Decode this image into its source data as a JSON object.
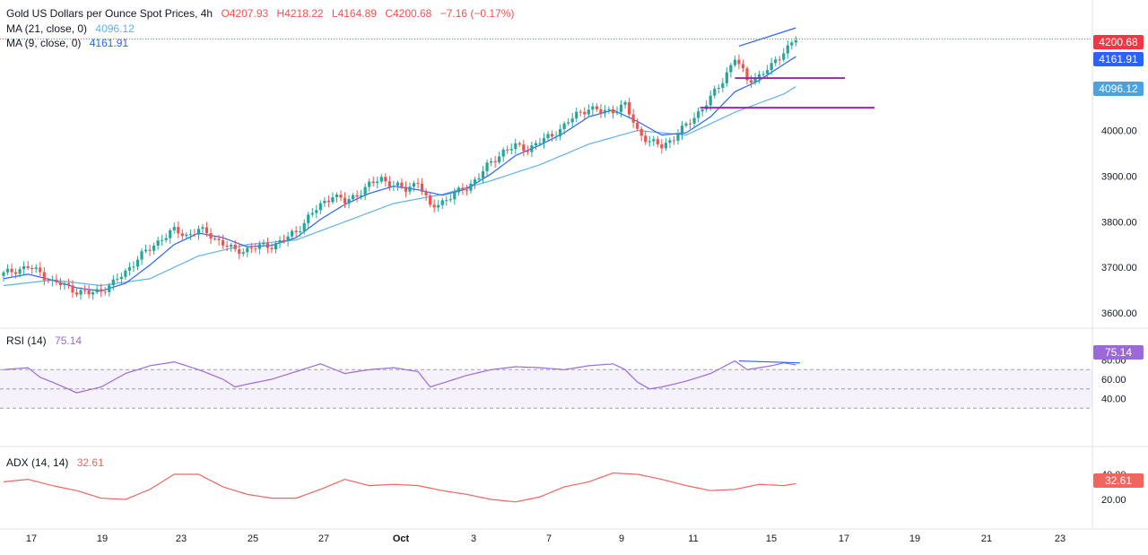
{
  "header": {
    "symbol": "Gold US Dollars per Ounce Spot Prices, 4h",
    "open": "O4207.93",
    "high": "H4218.22",
    "low": "L4164.89",
    "close": "C4200.68",
    "change": "−7.16 (−0.17%)"
  },
  "ma21": {
    "label": "MA (21, close, 0)",
    "value": "4096.12",
    "color": "#5fb3e6"
  },
  "ma9": {
    "label": "MA (9, close, 0)",
    "value": "4161.91",
    "color": "#2962ff"
  },
  "rsi": {
    "label": "RSI (14)",
    "value": "75.14",
    "color": "#9c6ad8"
  },
  "adx": {
    "label": "ADX (14, 14)",
    "value": "32.61",
    "color": "#f0665e"
  },
  "price_tags": {
    "last": "4200.68",
    "ma9": "4161.91",
    "ma21": "4096.12"
  },
  "colors": {
    "up": "#26a69a",
    "down": "#ef5350",
    "support": "#9c27b0",
    "divergence": "#2962ff"
  },
  "chart_data": [
    {
      "type": "candlestick",
      "title": "Gold US Dollars per Ounce Spot Prices, 4h",
      "y_ticks": [
        3600,
        3700,
        3800,
        3900,
        4000
      ],
      "ylim": [
        3580,
        4235
      ],
      "x_labels": [
        "17",
        "19",
        "23",
        "25",
        "27",
        "Oct",
        "3",
        "7",
        "9",
        "11",
        "15",
        "17",
        "19",
        "21",
        "23"
      ],
      "last_price": 4200.68,
      "close_path": [
        [
          0,
          3685
        ],
        [
          3,
          3695
        ],
        [
          6,
          3700
        ],
        [
          9,
          3688
        ],
        [
          12,
          3668
        ],
        [
          15,
          3660
        ],
        [
          18,
          3648
        ],
        [
          21,
          3642
        ],
        [
          24,
          3650
        ],
        [
          27,
          3665
        ],
        [
          30,
          3690
        ],
        [
          33,
          3720
        ],
        [
          36,
          3740
        ],
        [
          39,
          3765
        ],
        [
          42,
          3780
        ],
        [
          45,
          3770
        ],
        [
          48,
          3782
        ],
        [
          51,
          3770
        ],
        [
          54,
          3752
        ],
        [
          57,
          3735
        ],
        [
          60,
          3740
        ],
        [
          63,
          3745
        ],
        [
          66,
          3748
        ],
        [
          69,
          3760
        ],
        [
          72,
          3778
        ],
        [
          75,
          3810
        ],
        [
          78,
          3835
        ],
        [
          81,
          3860
        ],
        [
          84,
          3842
        ],
        [
          87,
          3860
        ],
        [
          90,
          3880
        ],
        [
          93,
          3895
        ],
        [
          96,
          3880
        ],
        [
          99,
          3870
        ],
        [
          102,
          3890
        ],
        [
          105,
          3830
        ],
        [
          108,
          3845
        ],
        [
          111,
          3860
        ],
        [
          114,
          3875
        ],
        [
          117,
          3900
        ],
        [
          120,
          3930
        ],
        [
          123,
          3955
        ],
        [
          126,
          3965
        ],
        [
          129,
          3960
        ],
        [
          132,
          3975
        ],
        [
          135,
          3990
        ],
        [
          138,
          4010
        ],
        [
          141,
          4035
        ],
        [
          144,
          4050
        ],
        [
          147,
          4040
        ],
        [
          150,
          4045
        ],
        [
          153,
          4055
        ],
        [
          156,
          4000
        ],
        [
          159,
          3975
        ],
        [
          162,
          3965
        ],
        [
          165,
          3985
        ],
        [
          168,
          4010
        ],
        [
          171,
          4040
        ],
        [
          174,
          4070
        ],
        [
          177,
          4110
        ],
        [
          180,
          4160
        ],
        [
          183,
          4110
        ],
        [
          186,
          4120
        ],
        [
          189,
          4140
        ],
        [
          192,
          4175
        ],
        [
          195,
          4200
        ]
      ],
      "ma9_path": [
        [
          0,
          3675
        ],
        [
          6,
          3685
        ],
        [
          12,
          3672
        ],
        [
          18,
          3655
        ],
        [
          24,
          3648
        ],
        [
          30,
          3665
        ],
        [
          36,
          3705
        ],
        [
          42,
          3750
        ],
        [
          48,
          3775
        ],
        [
          54,
          3765
        ],
        [
          60,
          3745
        ],
        [
          66,
          3748
        ],
        [
          72,
          3765
        ],
        [
          78,
          3805
        ],
        [
          84,
          3838
        ],
        [
          90,
          3862
        ],
        [
          96,
          3878
        ],
        [
          102,
          3870
        ],
        [
          108,
          3858
        ],
        [
          114,
          3872
        ],
        [
          120,
          3905
        ],
        [
          126,
          3945
        ],
        [
          132,
          3968
        ],
        [
          138,
          3995
        ],
        [
          144,
          4030
        ],
        [
          150,
          4045
        ],
        [
          156,
          4020
        ],
        [
          162,
          3990
        ],
        [
          168,
          3995
        ],
        [
          174,
          4030
        ],
        [
          180,
          4085
        ],
        [
          186,
          4110
        ],
        [
          192,
          4145
        ],
        [
          195,
          4162
        ]
      ],
      "ma21_path": [
        [
          0,
          3660
        ],
        [
          12,
          3672
        ],
        [
          24,
          3660
        ],
        [
          36,
          3675
        ],
        [
          48,
          3725
        ],
        [
          60,
          3750
        ],
        [
          72,
          3760
        ],
        [
          84,
          3800
        ],
        [
          96,
          3840
        ],
        [
          108,
          3860
        ],
        [
          120,
          3890
        ],
        [
          132,
          3925
        ],
        [
          144,
          3970
        ],
        [
          156,
          4000
        ],
        [
          168,
          3990
        ],
        [
          180,
          4040
        ],
        [
          192,
          4080
        ],
        [
          195,
          4096
        ]
      ],
      "support_levels": [
        4115,
        4050
      ],
      "price_trendline": [
        [
          4185,
          4225
        ]
      ],
      "series": [
        {
          "name": "MA (21, close, 0)",
          "last": 4096.12
        },
        {
          "name": "MA (9, close, 0)",
          "last": 4161.91
        }
      ]
    },
    {
      "type": "line",
      "title": "RSI (14)",
      "y_ticks": [
        40,
        60,
        80
      ],
      "ylim": [
        30,
        82
      ],
      "overbought": 70,
      "oversold": 30,
      "midline": 50,
      "values_path": [
        [
          0,
          70
        ],
        [
          6,
          72
        ],
        [
          9,
          62
        ],
        [
          12,
          57
        ],
        [
          18,
          46
        ],
        [
          24,
          52
        ],
        [
          30,
          66
        ],
        [
          36,
          74
        ],
        [
          42,
          78
        ],
        [
          48,
          70
        ],
        [
          54,
          60
        ],
        [
          57,
          52
        ],
        [
          60,
          55
        ],
        [
          66,
          60
        ],
        [
          72,
          68
        ],
        [
          78,
          76
        ],
        [
          84,
          66
        ],
        [
          90,
          70
        ],
        [
          96,
          72
        ],
        [
          102,
          68
        ],
        [
          105,
          52
        ],
        [
          108,
          56
        ],
        [
          114,
          64
        ],
        [
          120,
          70
        ],
        [
          126,
          73
        ],
        [
          132,
          72
        ],
        [
          138,
          70
        ],
        [
          144,
          74
        ],
        [
          150,
          76
        ],
        [
          153,
          70
        ],
        [
          156,
          57
        ],
        [
          159,
          50
        ],
        [
          162,
          52
        ],
        [
          168,
          58
        ],
        [
          174,
          66
        ],
        [
          180,
          79
        ],
        [
          183,
          70
        ],
        [
          186,
          72
        ],
        [
          189,
          74
        ],
        [
          192,
          77
        ],
        [
          195,
          75
        ]
      ],
      "divergence_line": [
        79,
        77
      ],
      "last": 75.14
    },
    {
      "type": "line",
      "title": "ADX (14, 14)",
      "y_ticks": [
        20,
        40
      ],
      "ylim": [
        15,
        45
      ],
      "values_path": [
        [
          0,
          34
        ],
        [
          6,
          36
        ],
        [
          12,
          31
        ],
        [
          18,
          27
        ],
        [
          24,
          21
        ],
        [
          30,
          20
        ],
        [
          36,
          28
        ],
        [
          42,
          40
        ],
        [
          48,
          40
        ],
        [
          54,
          30
        ],
        [
          60,
          24
        ],
        [
          66,
          21
        ],
        [
          72,
          21
        ],
        [
          78,
          28
        ],
        [
          84,
          36
        ],
        [
          90,
          31
        ],
        [
          96,
          32
        ],
        [
          102,
          31
        ],
        [
          108,
          27
        ],
        [
          114,
          24
        ],
        [
          120,
          20
        ],
        [
          126,
          18
        ],
        [
          132,
          22
        ],
        [
          138,
          30
        ],
        [
          144,
          34
        ],
        [
          150,
          41
        ],
        [
          156,
          40
        ],
        [
          162,
          36
        ],
        [
          168,
          31
        ],
        [
          174,
          27
        ],
        [
          180,
          28
        ],
        [
          186,
          32
        ],
        [
          192,
          31
        ],
        [
          195,
          32.6
        ]
      ],
      "last": 32.61
    }
  ]
}
